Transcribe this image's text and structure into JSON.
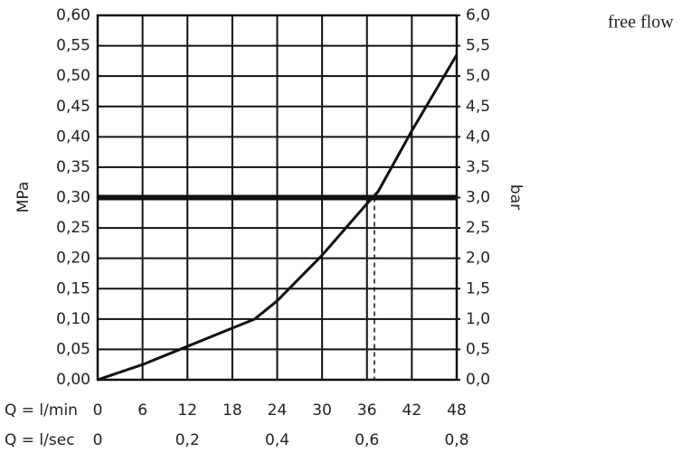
{
  "chart_data": {
    "type": "line",
    "x": [
      0,
      6,
      12,
      18,
      21,
      24,
      30,
      36,
      37.5,
      42,
      48
    ],
    "values": [
      0,
      0.025,
      0.055,
      0.085,
      0.1,
      0.13,
      0.205,
      0.29,
      0.31,
      0.41,
      0.535
    ],
    "color": "#111111",
    "xlim": [
      0,
      48
    ],
    "xticks": [
      0,
      6,
      12,
      18,
      24,
      30,
      36,
      42,
      48
    ],
    "x2lim": [
      0,
      0.8
    ],
    "x2ticks": [
      0,
      {
        "value": 0.2,
        "label": "0,2"
      },
      {
        "value": 0.4,
        "label": "0,4"
      },
      {
        "value": 0.6,
        "label": "0,6"
      },
      {
        "value": 0.8,
        "label": "0,8"
      }
    ],
    "ylim": [
      0,
      0.6
    ],
    "yticks": [
      {
        "value": 0,
        "label": "0,00"
      },
      {
        "value": 0.05,
        "label": "0,05"
      },
      {
        "value": 0.1,
        "label": "0,10"
      },
      {
        "value": 0.15,
        "label": "0,15"
      },
      {
        "value": 0.2,
        "label": "0,20"
      },
      {
        "value": 0.25,
        "label": "0,25"
      },
      {
        "value": 0.3,
        "label": "0,30"
      },
      {
        "value": 0.35,
        "label": "0,35"
      },
      {
        "value": 0.4,
        "label": "0,40"
      },
      {
        "value": 0.45,
        "label": "0,45"
      },
      {
        "value": 0.5,
        "label": "0,50"
      },
      {
        "value": 0.55,
        "label": "0,55"
      },
      {
        "value": 0.6,
        "label": "0,60"
      }
    ],
    "y2lim": [
      0,
      6
    ],
    "y2ticks": [
      {
        "value": 0,
        "label": "0,0"
      },
      {
        "value": 0.5,
        "label": "0,5"
      },
      {
        "value": 1,
        "label": "1,0"
      },
      {
        "value": 1.5,
        "label": "1,5"
      },
      {
        "value": 2,
        "label": "2,0"
      },
      {
        "value": 2.5,
        "label": "2,5"
      },
      {
        "value": 3,
        "label": "3,0"
      },
      {
        "value": 3.5,
        "label": "3,5"
      },
      {
        "value": 4,
        "label": "4,0"
      },
      {
        "value": 4.5,
        "label": "4,5"
      },
      {
        "value": 5,
        "label": "5,0"
      },
      {
        "value": 5.5,
        "label": "5,5"
      },
      {
        "value": 6,
        "label": "6,0"
      }
    ],
    "ylabel": "MPa",
    "y2label": "bar",
    "xlabel": "Q = l/min",
    "x2label": "Q = l/sec",
    "hline": 0.3,
    "vline": 37,
    "grid": true,
    "annotation": "free flow"
  }
}
